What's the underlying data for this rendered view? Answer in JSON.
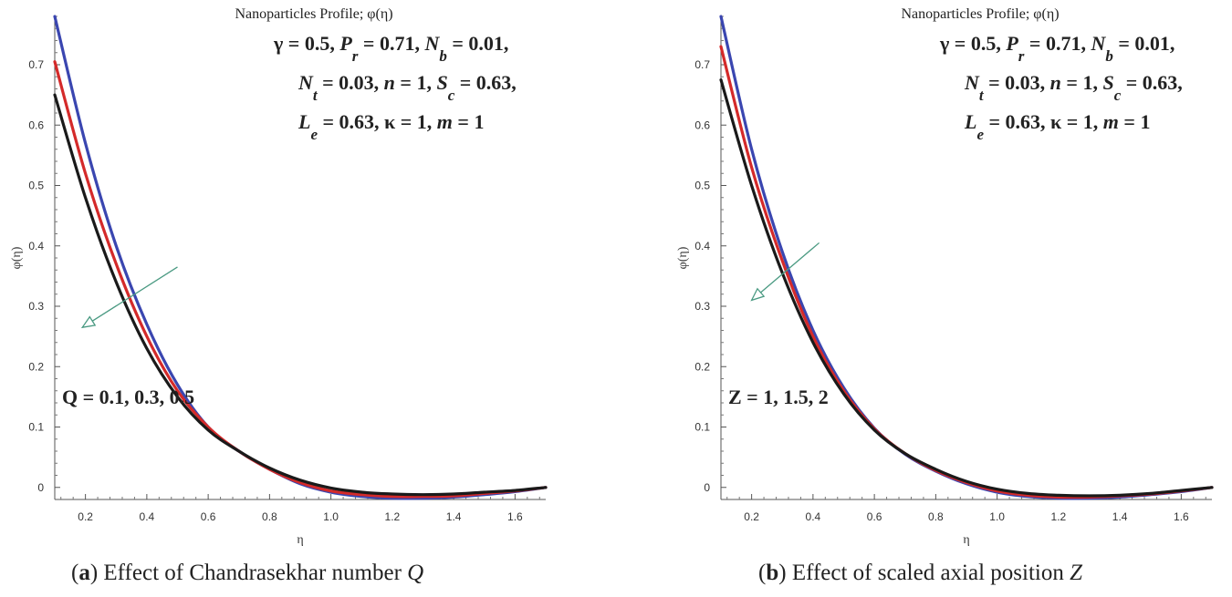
{
  "panels": [
    {
      "id": "a",
      "caption": {
        "letter": "a",
        "text": "Effect of Chandrasekhar number ",
        "symbol": "Q"
      },
      "annotation": {
        "params_line1": [
          "γ = 0.5, ",
          "P",
          "r",
          " = 0.71, ",
          "N",
          "b",
          " = 0.01,"
        ],
        "params_line2": [
          "N",
          "t",
          " = 0.03, ",
          "n",
          " = 1, ",
          "S",
          "c",
          " = 0.63,"
        ],
        "params_line3": [
          "L",
          "e",
          " = 0.63, κ = 1, ",
          "m",
          " = 1"
        ],
        "curve_label": "Q = 0.1, 0.3, 0.5"
      },
      "chart_data": {
        "type": "line",
        "title": "Nanoparticles Profile; φ(η)",
        "xlabel": "η",
        "ylabel": "φ(η)",
        "xlim": [
          0.1,
          1.7
        ],
        "ylim": [
          -0.02,
          0.78
        ],
        "xticks": [
          "0.2",
          "0.4",
          "0.6",
          "0.8",
          "1.0",
          "1.2",
          "1.4",
          "1.6"
        ],
        "yticks": [
          "0",
          "0.1",
          "0.2",
          "0.3",
          "0.4",
          "0.5",
          "0.6",
          "0.7"
        ],
        "grid": false,
        "series": [
          {
            "color": "#3a46b0",
            "x": [
              0.1,
              0.2,
              0.3,
              0.4,
              0.5,
              0.6,
              0.7,
              0.8,
              0.9,
              1.0,
              1.1,
              1.2,
              1.3,
              1.4,
              1.5,
              1.6,
              1.7
            ],
            "y": [
              0.78,
              0.57,
              0.4,
              0.27,
              0.17,
              0.1,
              0.06,
              0.03,
              0.006,
              -0.008,
              -0.015,
              -0.018,
              -0.018,
              -0.016,
              -0.012,
              -0.007,
              0.0
            ]
          },
          {
            "color": "#d42a2a",
            "x": [
              0.1,
              0.2,
              0.3,
              0.4,
              0.5,
              0.6,
              0.7,
              0.8,
              0.9,
              1.0,
              1.1,
              1.2,
              1.3,
              1.4,
              1.5,
              1.6,
              1.7
            ],
            "y": [
              0.705,
              0.52,
              0.37,
              0.25,
              0.16,
              0.1,
              0.06,
              0.03,
              0.008,
              -0.006,
              -0.012,
              -0.015,
              -0.015,
              -0.014,
              -0.01,
              -0.006,
              0.0
            ]
          },
          {
            "color": "#1a1a1a",
            "x": [
              0.1,
              0.2,
              0.3,
              0.4,
              0.5,
              0.6,
              0.7,
              0.8,
              0.9,
              1.0,
              1.1,
              1.2,
              1.3,
              1.4,
              1.5,
              1.6,
              1.7
            ],
            "y": [
              0.65,
              0.48,
              0.34,
              0.23,
              0.15,
              0.095,
              0.06,
              0.032,
              0.012,
              -0.001,
              -0.008,
              -0.011,
              -0.012,
              -0.011,
              -0.008,
              -0.005,
              0.0
            ]
          }
        ],
        "arrow": {
          "from": [
            0.5,
            0.365
          ],
          "to": [
            0.19,
            0.265
          ],
          "color": "#4a9a82"
        }
      }
    },
    {
      "id": "b",
      "caption": {
        "letter": "b",
        "text": "Effect of scaled axial position ",
        "symbol": "Z"
      },
      "annotation": {
        "params_line1": [
          "γ = 0.5, ",
          "P",
          "r",
          " = 0.71, ",
          "N",
          "b",
          " = 0.01,"
        ],
        "params_line2": [
          "N",
          "t",
          " = 0.03, ",
          "n",
          " = 1, ",
          "S",
          "c",
          " = 0.63,"
        ],
        "params_line3": [
          "L",
          "e",
          " = 0.63, κ = 1, ",
          "m",
          " = 1"
        ],
        "curve_label": "Z = 1, 1.5, 2"
      },
      "chart_data": {
        "type": "line",
        "title": "Nanoparticles Profile; φ(η)",
        "xlabel": "η",
        "ylabel": "φ(η)",
        "xlim": [
          0.1,
          1.7
        ],
        "ylim": [
          -0.02,
          0.78
        ],
        "xticks": [
          "0.2",
          "0.4",
          "0.6",
          "0.8",
          "1.0",
          "1.2",
          "1.4",
          "1.6"
        ],
        "yticks": [
          "0",
          "0.1",
          "0.2",
          "0.3",
          "0.4",
          "0.5",
          "0.6",
          "0.7"
        ],
        "grid": false,
        "series": [
          {
            "color": "#3a46b0",
            "x": [
              0.1,
              0.2,
              0.3,
              0.4,
              0.5,
              0.6,
              0.7,
              0.8,
              0.9,
              1.0,
              1.1,
              1.2,
              1.3,
              1.4,
              1.5,
              1.6,
              1.7
            ],
            "y": [
              0.78,
              0.56,
              0.39,
              0.26,
              0.165,
              0.098,
              0.055,
              0.027,
              0.006,
              -0.008,
              -0.015,
              -0.018,
              -0.018,
              -0.016,
              -0.012,
              -0.007,
              0.0
            ]
          },
          {
            "color": "#d42a2a",
            "x": [
              0.1,
              0.2,
              0.3,
              0.4,
              0.5,
              0.6,
              0.7,
              0.8,
              0.9,
              1.0,
              1.1,
              1.2,
              1.3,
              1.4,
              1.5,
              1.6,
              1.7
            ],
            "y": [
              0.73,
              0.53,
              0.375,
              0.25,
              0.16,
              0.097,
              0.056,
              0.028,
              0.008,
              -0.006,
              -0.013,
              -0.016,
              -0.016,
              -0.014,
              -0.011,
              -0.006,
              0.0
            ]
          },
          {
            "color": "#1a1a1a",
            "x": [
              0.1,
              0.2,
              0.3,
              0.4,
              0.5,
              0.6,
              0.7,
              0.8,
              0.9,
              1.0,
              1.1,
              1.2,
              1.3,
              1.4,
              1.5,
              1.6,
              1.7
            ],
            "y": [
              0.675,
              0.5,
              0.355,
              0.24,
              0.155,
              0.095,
              0.056,
              0.03,
              0.01,
              -0.003,
              -0.01,
              -0.013,
              -0.014,
              -0.013,
              -0.01,
              -0.005,
              0.0
            ]
          }
        ],
        "arrow": {
          "from": [
            0.42,
            0.405
          ],
          "to": [
            0.2,
            0.31
          ],
          "color": "#4a9a82"
        }
      }
    }
  ]
}
